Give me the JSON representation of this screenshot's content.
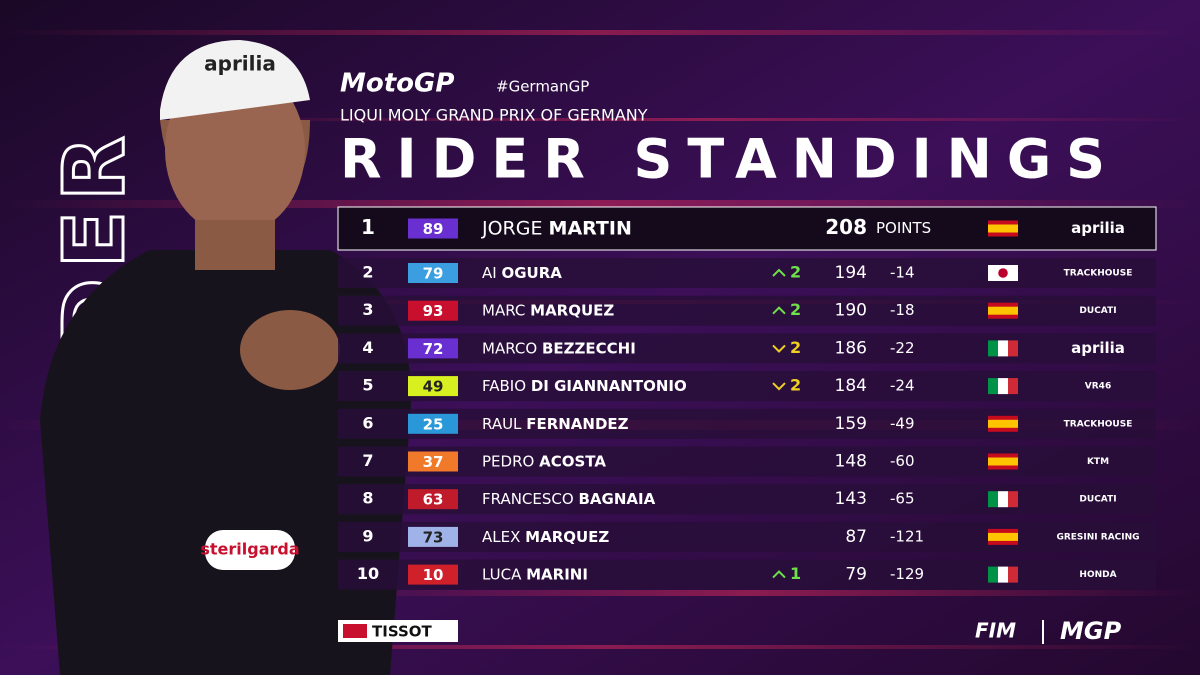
{
  "brand": "MotoGP",
  "hashtag": "#GermanGP",
  "event": "LIQUI MOLY GRAND PRIX OF GERMANY",
  "title": "RIDER STANDINGS",
  "side_label": "LEADER",
  "table": {
    "points_label": "POINTS",
    "rows": [
      {
        "pos": 1,
        "number": "89",
        "color": "#6a2fd0",
        "first": "JORGE",
        "last": "MARTIN",
        "points": 208,
        "country": "ESP",
        "team": "aprilia"
      },
      {
        "pos": 2,
        "number": "79",
        "color": "#3a9ee0",
        "first": "AI",
        "last": "OGURA",
        "move": {
          "dir": "up",
          "value": 2
        },
        "points": 194,
        "gap": -14,
        "country": "JPN",
        "team": "TRACKHOUSE"
      },
      {
        "pos": 3,
        "number": "93",
        "color": "#c8102e",
        "first": "MARC",
        "last": "MARQUEZ",
        "move": {
          "dir": "up",
          "value": 2
        },
        "points": 190,
        "gap": -18,
        "country": "ESP",
        "team": "DUCATI"
      },
      {
        "pos": 4,
        "number": "72",
        "color": "#6a2fd0",
        "first": "MARCO",
        "last": "BEZZECCHI",
        "move": {
          "dir": "down",
          "value": 2
        },
        "points": 186,
        "gap": -22,
        "country": "ITA",
        "team": "aprilia"
      },
      {
        "pos": 5,
        "number": "49",
        "color": "#d8f020",
        "first": "FABIO",
        "last": "DI GIANNANTONIO",
        "move": {
          "dir": "down",
          "value": 2
        },
        "points": 184,
        "gap": -24,
        "country": "ITA",
        "team": "VR46"
      },
      {
        "pos": 6,
        "number": "25",
        "color": "#2a98d8",
        "first": "RAUL",
        "last": "FERNANDEZ",
        "points": 159,
        "gap": -49,
        "country": "ESP",
        "team": "TRACKHOUSE"
      },
      {
        "pos": 7,
        "number": "37",
        "color": "#f07a2a",
        "first": "PEDRO",
        "last": "ACOSTA",
        "points": 148,
        "gap": -60,
        "country": "ESP",
        "team": "KTM"
      },
      {
        "pos": 8,
        "number": "63",
        "color": "#c01b2a",
        "first": "FRANCESCO",
        "last": "BAGNAIA",
        "points": 143,
        "gap": -65,
        "country": "ITA",
        "team": "DUCATI"
      },
      {
        "pos": 9,
        "number": "73",
        "color": "#9fb3e8",
        "first": "ALEX",
        "last": "MARQUEZ",
        "points": 87,
        "gap": -121,
        "country": "ESP",
        "team": "GRESINI RACING"
      },
      {
        "pos": 10,
        "number": "10",
        "color": "#d0202a",
        "first": "LUCA",
        "last": "MARINI",
        "move": {
          "dir": "up",
          "value": 1
        },
        "points": 79,
        "gap": -129,
        "country": "ITA",
        "team": "HONDA"
      }
    ]
  },
  "sponsor": "TISSOT",
  "footer": [
    "FIM",
    "MGP"
  ]
}
